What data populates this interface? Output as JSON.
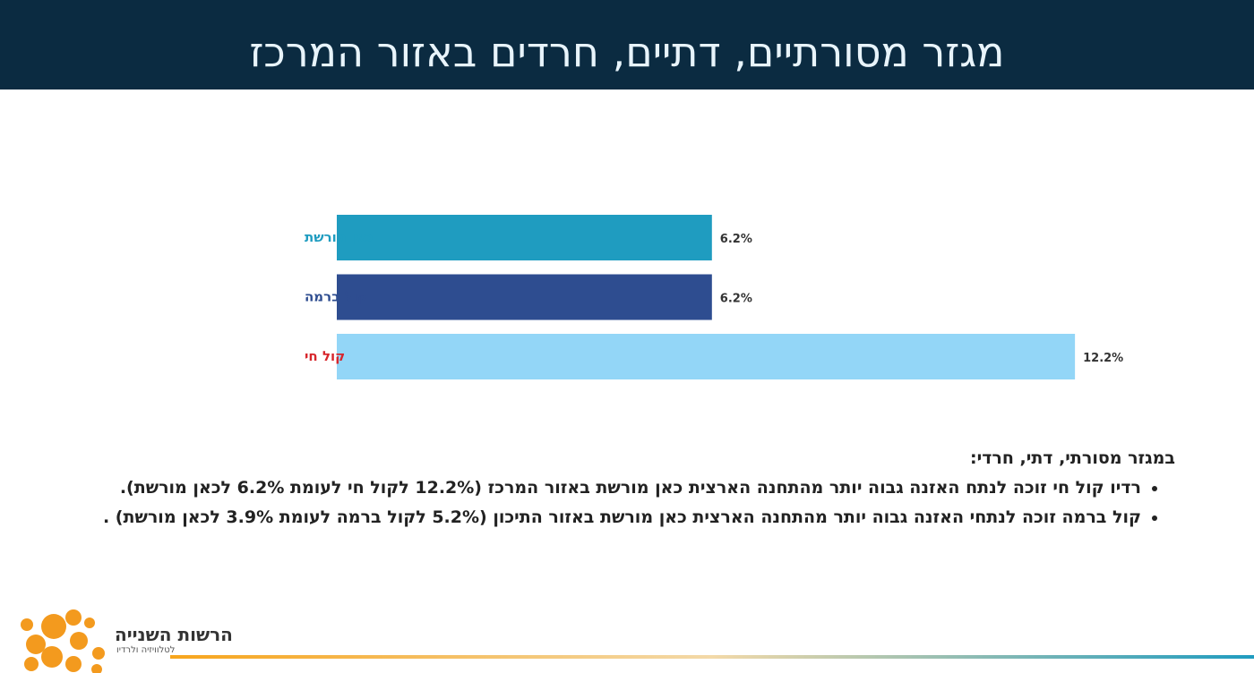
{
  "chart_data": {
    "type": "bar",
    "orientation": "horizontal",
    "title": "מגזר מסורתיים, דתיים, חרדים באזור המרכז",
    "categories": [
      "כאן מורשת",
      "קול ברמה",
      "קול חי"
    ],
    "values": [
      6.2,
      6.2,
      12.2
    ],
    "value_labels": [
      "6.2%",
      "6.2%",
      "12.2%"
    ],
    "colors": [
      "#1f9cc0",
      "#2e4d90",
      "#93d6f7"
    ]
  },
  "notes": {
    "heading": "במגזר מסורתי, דתי, חרדי:",
    "bullets": [
      "רדיו קול חי זוכה לנתח האזנה גבוה יותר מהתחנה הארצית כאן מורשת באזור המרכז (12.2% לקול חי לעומת 6.2% לכאן מורשת).",
      "קול ברמה זוכה לנתחי האזנה גבוה יותר מהתחנה הארצית כאן מורשת באזור התיכון (5.2% לקול ברמה לעומת 3.9% לכאן מורשת) ."
    ]
  },
  "footer": {
    "org": "הרשות השנייה",
    "tagline": "לטלוויזיה ולרדיו"
  }
}
